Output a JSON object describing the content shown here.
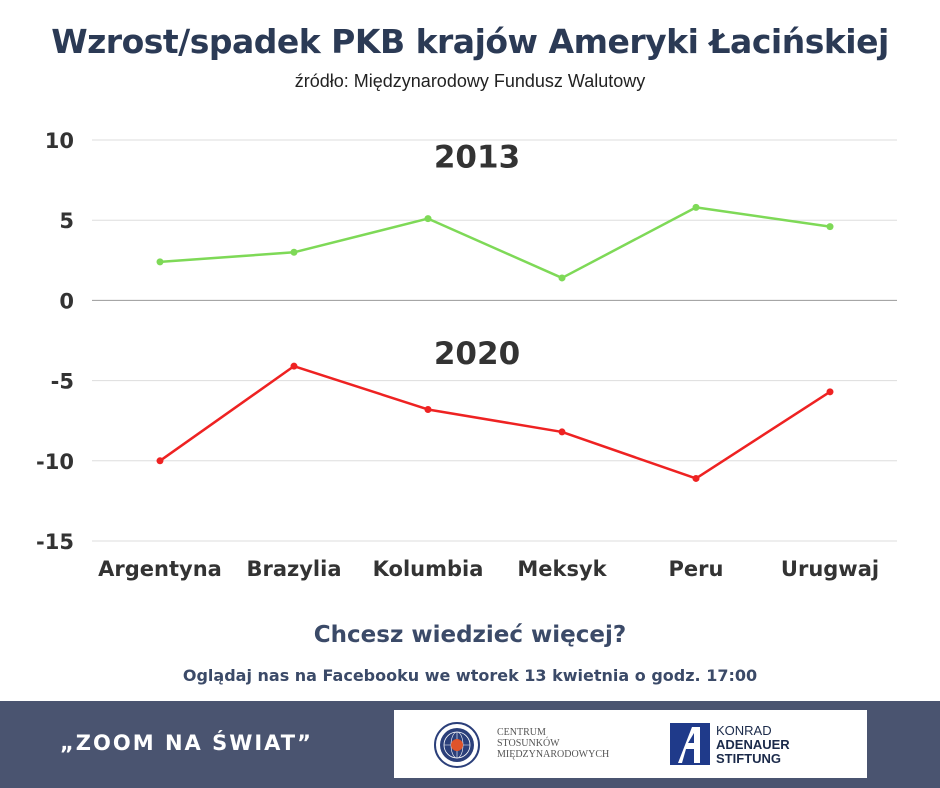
{
  "header": {
    "title": "Wzrost/spadek PKB krajów Ameryki Łacińskiej",
    "subtitle": "źródło: Międzynarodowy Fundusz Walutowy"
  },
  "chart_data": {
    "type": "line",
    "categories": [
      "Argentyna",
      "Brazylia",
      "Kolumbia",
      "Meksyk",
      "Peru",
      "Urugwaj"
    ],
    "series": [
      {
        "name": "2013",
        "values": [
          2.4,
          3.0,
          5.1,
          1.4,
          5.8,
          4.6
        ],
        "color": "#7ed957"
      },
      {
        "name": "2020",
        "values": [
          -10.0,
          -4.1,
          -6.8,
          -8.2,
          -11.1,
          -5.7
        ],
        "color": "#ee2222"
      }
    ],
    "ylim": [
      -15,
      10
    ],
    "yticks": [
      10,
      5,
      0,
      -5,
      -10,
      -15
    ],
    "ytick_labels": [
      "10",
      "5",
      "0",
      "-5",
      "-10",
      "-15"
    ],
    "grid": true,
    "zero_line_color": "#9a9a9a",
    "grid_color": "#dddddd"
  },
  "cta": {
    "title": "Chcesz wiedzieć więcej?",
    "subtitle": "Oglądaj nas na Facebooku we wtorek 13 kwietnia o godz. 17:00"
  },
  "footer": {
    "series_title": "„ZOOM NA ŚWIAT”",
    "background": "#4a5470",
    "logo_csm": {
      "line1": "CENTRUM",
      "line2": "STOSUNKÓW",
      "line3": "MIĘDZYNARODOWYCH"
    },
    "logo_kas": {
      "line1": "KONRAD",
      "line2": "ADENAUER",
      "line3": "STIFTUNG"
    }
  }
}
